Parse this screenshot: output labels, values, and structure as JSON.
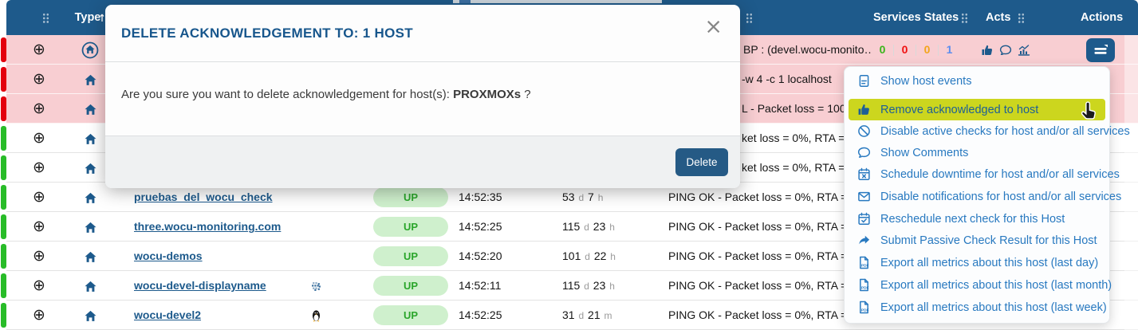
{
  "colors": {
    "header_bg": "#1e5a8b",
    "row_down_bg": "#f8ced2",
    "strip_down": "#e3000e",
    "strip_up": "#28bc28",
    "badge_up_bg": "#cff0cd",
    "badge_up_text": "#2aa52a",
    "link_blue": "#1d5a8c",
    "menu_link": "#2879c0",
    "menu_highlight": "#ccd61e",
    "state_ok": "#39b51a",
    "state_critical": "#ef1010",
    "state_warning": "#f2a51a",
    "state_unknown": "#5b8def",
    "delete_btn": "#255a85"
  },
  "icons": {
    "expand_glyph": "⊕",
    "close_glyph": "×"
  },
  "header": {
    "type": "Type",
    "services_states": "Services States",
    "acts": "Acts",
    "actions": "Actions"
  },
  "modal": {
    "title": "DELETE ACKNOWLEDGEMENT TO: 1 HOST",
    "body_prefix": "Are you sure you want to delete acknowledgement for host(s): ",
    "host_bold": "PROXMOXs",
    "body_suffix": " ?",
    "delete_button": "Delete"
  },
  "context_menu": {
    "items": [
      {
        "label": "Show host events",
        "icon": "document-icon",
        "highlighted": false
      },
      {
        "label": "Remove acknowledged to host",
        "icon": "thumbs-up-icon",
        "highlighted": true
      },
      {
        "label": "Disable active checks for host and/or all services",
        "icon": "ban-icon",
        "highlighted": false
      },
      {
        "label": "Show Comments",
        "icon": "comment-icon",
        "highlighted": false
      },
      {
        "label": "Schedule downtime for host and/or all services",
        "icon": "calendar-x-icon",
        "highlighted": false
      },
      {
        "label": "Disable notifications for host and/or all services",
        "icon": "envelope-icon",
        "highlighted": false
      },
      {
        "label": "Reschedule next check for this Host",
        "icon": "calendar-check-icon",
        "highlighted": false
      },
      {
        "label": "Submit Passive Check Result for this Host",
        "icon": "share-arrow-icon",
        "highlighted": false
      },
      {
        "label": "Export all metrics about this host (last day)",
        "icon": "pdf-file-icon",
        "highlighted": false
      },
      {
        "label": "Export all metrics about this host (last month)",
        "icon": "pdf-file-icon",
        "highlighted": false
      },
      {
        "label": "Export all metrics about this host (last week)",
        "icon": "pdf-file-icon",
        "highlighted": false
      }
    ]
  },
  "table": {
    "rows": [
      {
        "state": "down",
        "bp": true,
        "output_fragment": "BP : (devel.wocu-monito…",
        "services_states": {
          "ok": "0",
          "critical": "0",
          "warning": "0",
          "unknown": "1"
        },
        "acts": [
          "thumbs-up-icon",
          "comment-icon",
          "metrics-chart-icon"
        ],
        "has_actions_button": true
      },
      {
        "state": "down",
        "output_fragment": "-w 4 -c 1 localhost"
      },
      {
        "state": "down",
        "output_fragment": "L - Packet loss = 100"
      },
      {
        "state": "up",
        "output_fragment": "ket loss = 0%, RTA ="
      },
      {
        "state": "up",
        "output_fragment": "ket loss = 0%, RTA ="
      },
      {
        "state": "up",
        "host": "pruebas_del_wocu_check",
        "status": "UP",
        "check_time": "14:52:35",
        "duration": "53 d 7 h",
        "output": "PING OK - Packet loss = 0%, RTA ="
      },
      {
        "state": "up",
        "host": "three.wocu-monitoring.com",
        "status": "UP",
        "check_time": "14:52:25",
        "duration": "115 d 23 h",
        "output": "PING OK - Packet loss = 0%, RTA ="
      },
      {
        "state": "up",
        "host": "wocu-demos",
        "status": "UP",
        "check_time": "14:52:20",
        "duration": "101 d 22 h",
        "output": "PING OK - Packet loss = 0%, RTA ="
      },
      {
        "state": "up",
        "host": "wocu-devel-displayname",
        "status": "UP",
        "check_time": "14:52:11",
        "duration": "115 d 23 h",
        "output": "PING OK - Packet loss = 0%, RTA =",
        "extra_icon": "pixel-cluster-icon"
      },
      {
        "state": "up",
        "host": "wocu-devel2",
        "status": "UP",
        "check_time": "14:52:25",
        "duration": "31 d 21 m",
        "output": "PING OK - Packet loss = 0%, RTA =",
        "extra_icon": "linux-penguin-icon"
      }
    ]
  }
}
